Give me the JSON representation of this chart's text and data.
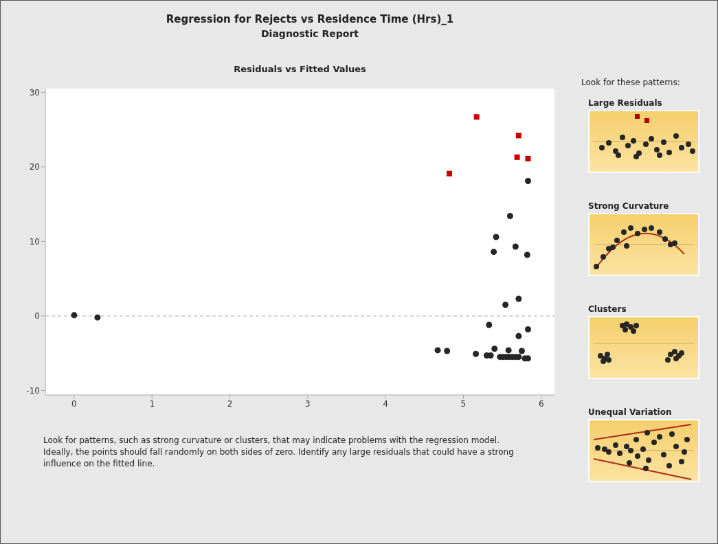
{
  "chart_data": {
    "type": "scatter",
    "title": "Regression for Rejects vs Residence Time (Hrs)_1",
    "subtitle": "Diagnostic Report",
    "annotations": [
      "Residuals vs Fitted Values",
      "Look for patterns, such as strong curvature or clusters, that may indicate problems with the regression model. Ideally, the points should fall randomly on both sides of zero. Identify any large residuals that could have a strong influence on the fitted line.",
      "Look for these patterns:",
      "Large Residuals",
      "Strong Curvature",
      "Clusters",
      "Unequal Variation"
    ],
    "series": [
      {
        "color": "#cc0000",
        "marker": "square",
        "x": [
          4.82,
          5.17,
          5.71,
          5.69,
          5.83
        ],
        "values": [
          19.1,
          26.7,
          24.2,
          21.3,
          21.1
        ]
      },
      {
        "color": "#262626",
        "marker": "circle",
        "x": [
          0,
          0.3,
          5.83,
          5.6,
          5.42,
          5.39,
          5.67,
          5.82,
          5.71,
          5.54,
          5.33,
          5.83,
          5.71,
          4.67,
          4.79,
          5.16,
          5.3,
          5.35,
          5.4,
          5.58,
          5.75,
          5.47,
          5.51,
          5.55,
          5.59,
          5.63,
          5.67,
          5.71,
          5.79,
          5.83
        ],
        "values": [
          0.1,
          -0.2,
          18.1,
          13.4,
          10.6,
          8.6,
          9.3,
          8.2,
          2.3,
          1.5,
          -1.2,
          -1.8,
          -2.7,
          -4.6,
          -4.7,
          -5.1,
          -5.3,
          -5.3,
          -4.4,
          -4.6,
          -4.7,
          -5.5,
          -5.5,
          -5.5,
          -5.5,
          -5.5,
          -5.5,
          -5.5,
          -5.7,
          -5.7
        ]
      }
    ],
    "xlim": [
      -0.37,
      6.17
    ],
    "xticks": [
      0,
      1,
      2,
      3,
      4,
      5,
      6
    ],
    "ylim": [
      -10.6,
      30.5
    ],
    "yticks": [
      -10,
      0,
      10,
      20,
      30
    ],
    "ref_lines": [
      {
        "axis": "y",
        "value": 0,
        "color": "#aaaaaa",
        "line_style": "dashed"
      }
    ],
    "grid": false,
    "legend": false
  }
}
